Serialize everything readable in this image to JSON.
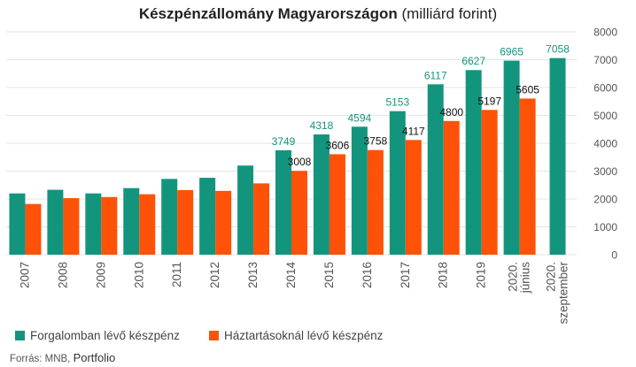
{
  "chart_data": {
    "type": "bar",
    "title_bold": "Készpénzállomány Magyarországon",
    "title_rest": " (milliárd forint)",
    "categories": [
      "2007",
      "2008",
      "2009",
      "2010",
      "2011",
      "2012",
      "2013",
      "2014",
      "2015",
      "2016",
      "2017",
      "2018",
      "2019",
      "2020. június",
      "2020. szeptember"
    ],
    "series": [
      {
        "name": "Forgalomban lévő készpénz",
        "color": "#13957d",
        "values": [
          2200,
          2330,
          2200,
          2390,
          2720,
          2760,
          3200,
          3749,
          4318,
          4594,
          5153,
          6117,
          6627,
          6965,
          7058
        ],
        "labels": [
          null,
          null,
          null,
          null,
          null,
          null,
          null,
          "3749",
          "4318",
          "4594",
          "5153",
          "6117",
          "6627",
          "6965",
          "7058"
        ]
      },
      {
        "name": "Háztartásoknál lévő készpénz",
        "color": "#fd5208",
        "values": [
          1820,
          2030,
          2070,
          2170,
          2320,
          2290,
          2560,
          3008,
          3606,
          3758,
          4117,
          4800,
          5197,
          5605,
          null
        ],
        "labels": [
          null,
          null,
          null,
          null,
          null,
          null,
          null,
          "3008",
          "3606",
          "3758",
          "4117",
          "4800",
          "5197",
          "5605",
          null
        ]
      }
    ],
    "ylim": [
      0,
      8000
    ],
    "yticks": [
      0,
      1000,
      2000,
      3000,
      4000,
      5000,
      6000,
      7000,
      8000
    ],
    "grid": true,
    "legend_position": "bottom-left"
  },
  "source": {
    "prefix": "Forrás: MNB,",
    "brand": "Portfolio"
  }
}
